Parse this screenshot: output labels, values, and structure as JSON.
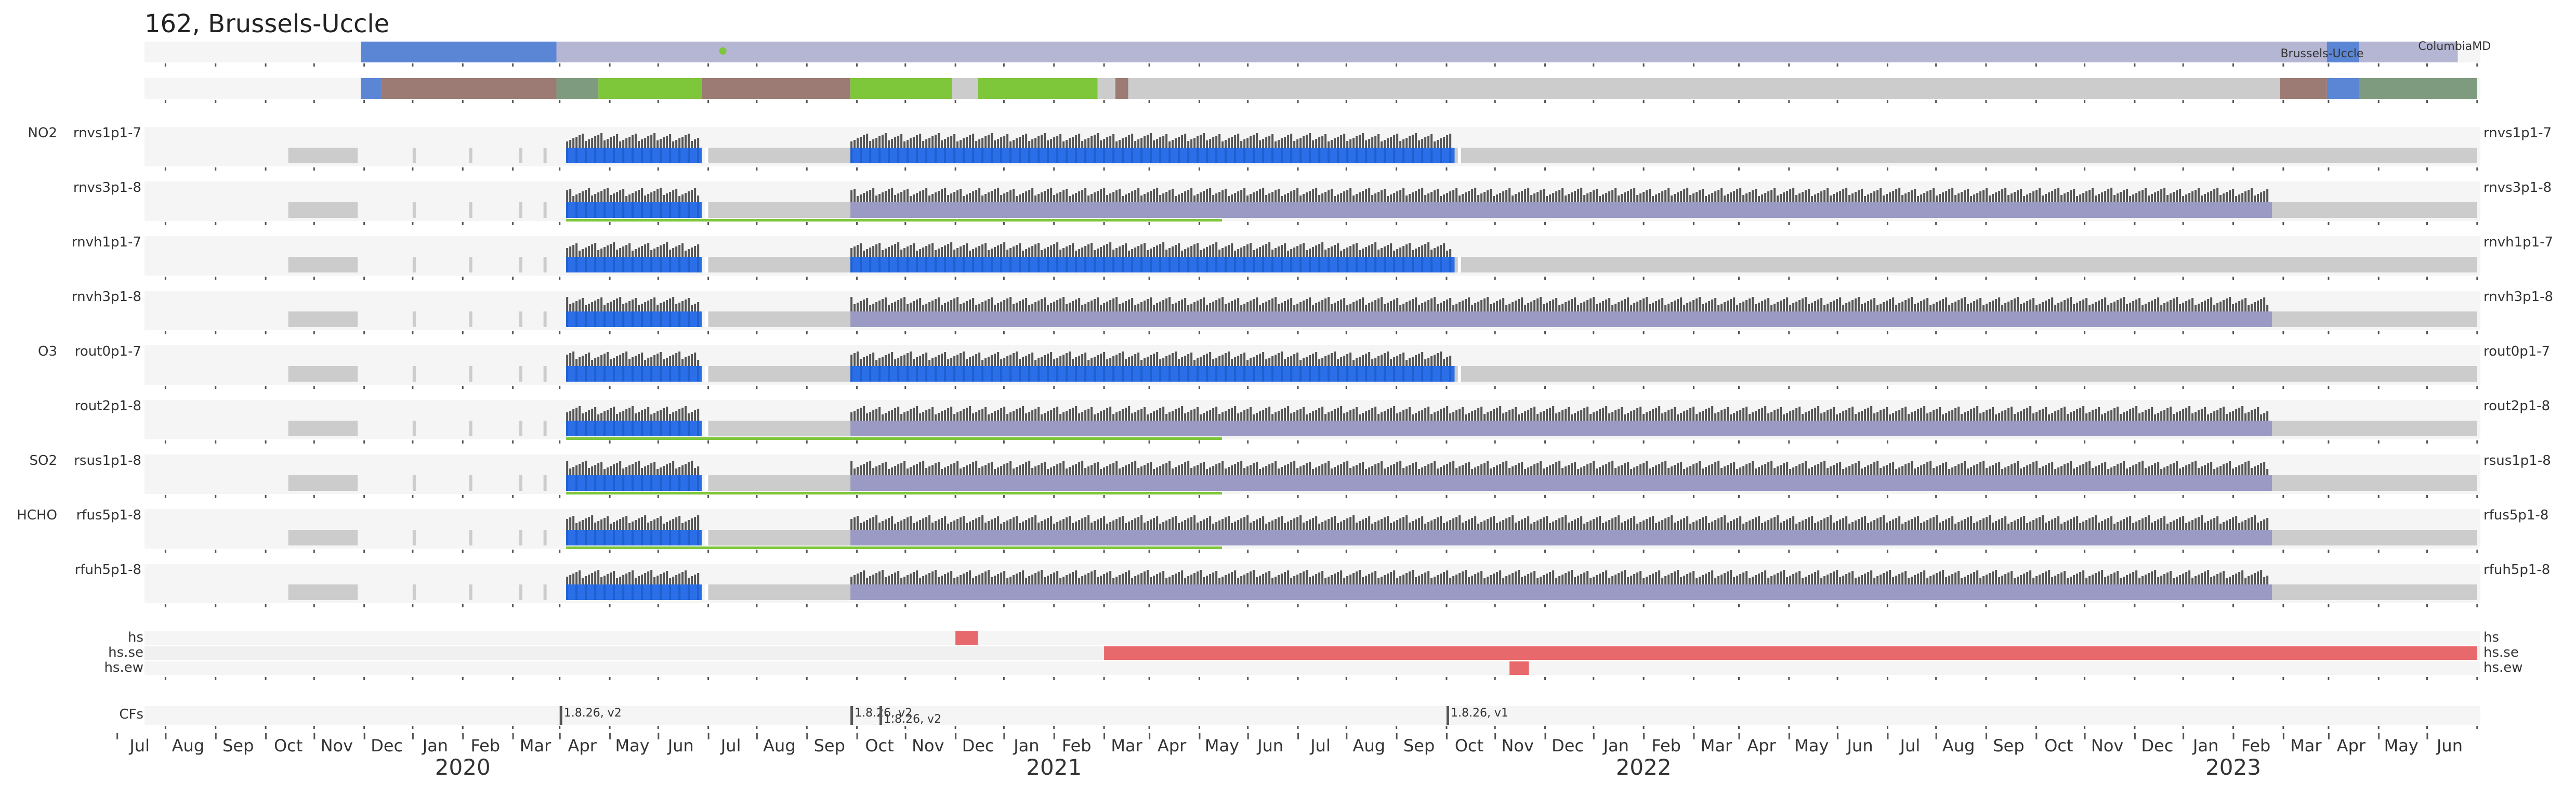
{
  "title": "162, Brussels-Uccle",
  "chart_data": {
    "type": "timeline",
    "timeline_range": [
      "2019-06-18",
      "2023-06-12"
    ],
    "location_bar": {
      "blue_segments": [
        [
          "2019-10-30",
          "2020-02-28"
        ],
        [
          "2023-02-28",
          "2023-03-20"
        ]
      ],
      "lavender_segments": [
        [
          "2020-02-28",
          "2023-02-28"
        ],
        [
          "2023-03-20",
          "2023-05-20"
        ]
      ],
      "green_dot": "2020-06-10",
      "labels": [
        {
          "text": "Brussels-Uccle",
          "date": "2023-02-25"
        },
        {
          "text": "ColumbiaMD",
          "date": "2023-05-18"
        }
      ]
    },
    "status_bar": {
      "segments": [
        {
          "start": "2019-10-30",
          "end": "2019-11-12",
          "color": "#5b86d6"
        },
        {
          "start": "2019-11-12",
          "end": "2020-02-28",
          "color": "#9b7b73"
        },
        {
          "start": "2020-02-28",
          "end": "2020-03-25",
          "color": "#7f9b7f"
        },
        {
          "start": "2020-03-25",
          "end": "2020-05-28",
          "color": "#7ec63a"
        },
        {
          "start": "2020-05-28",
          "end": "2020-08-28",
          "color": "#9b7b73"
        },
        {
          "start": "2020-08-28",
          "end": "2020-10-30",
          "color": "#7ec63a"
        },
        {
          "start": "2020-10-30",
          "end": "2020-11-15",
          "color": "#cccccc"
        },
        {
          "start": "2020-11-15",
          "end": "2021-01-28",
          "color": "#7ec63a"
        },
        {
          "start": "2021-01-28",
          "end": "2021-02-08",
          "color": "#cccccc"
        },
        {
          "start": "2021-02-08",
          "end": "2021-02-16",
          "color": "#9b7b73"
        },
        {
          "start": "2021-02-16",
          "end": "2023-01-30",
          "color": "#cccccc"
        },
        {
          "start": "2023-01-30",
          "end": "2023-02-28",
          "color": "#9b7b73"
        },
        {
          "start": "2023-02-28",
          "end": "2023-03-20",
          "color": "#5b86d6"
        },
        {
          "start": "2023-03-20",
          "end": "2023-06-01",
          "color": "#7f9b7f"
        }
      ]
    },
    "rows": [
      {
        "group": "NO2",
        "name": "rnvs1p1-7",
        "data_spans": [
          [
            "2020-03-05",
            "2020-05-28"
          ],
          [
            "2020-08-28",
            "2021-09-06"
          ]
        ],
        "green_line": null,
        "grey_until": "2023-06-01"
      },
      {
        "group": "",
        "name": "rnvs3p1-8",
        "data_spans": [
          [
            "2020-03-05",
            "2020-05-28"
          ],
          [
            "2020-08-28",
            "2023-01-25"
          ]
        ],
        "green_line": [
          "2020-03-05",
          "2021-04-15"
        ],
        "grey_until": "2023-06-01"
      },
      {
        "group": "",
        "name": "rnvh1p1-7",
        "data_spans": [
          [
            "2020-03-05",
            "2020-05-28"
          ],
          [
            "2020-08-28",
            "2021-09-06"
          ]
        ],
        "green_line": null,
        "grey_until": "2023-06-01"
      },
      {
        "group": "",
        "name": "rnvh3p1-8",
        "data_spans": [
          [
            "2020-03-05",
            "2020-05-28"
          ],
          [
            "2020-08-28",
            "2023-01-25"
          ]
        ],
        "green_line": null,
        "grey_until": "2023-06-01"
      },
      {
        "group": "O3",
        "name": "rout0p1-7",
        "data_spans": [
          [
            "2020-03-05",
            "2020-05-28"
          ],
          [
            "2020-08-28",
            "2021-09-06"
          ]
        ],
        "green_line": null,
        "grey_until": "2023-06-01"
      },
      {
        "group": "",
        "name": "rout2p1-8",
        "data_spans": [
          [
            "2020-03-05",
            "2020-05-28"
          ],
          [
            "2020-08-28",
            "2023-01-25"
          ]
        ],
        "green_line": [
          "2020-03-05",
          "2021-04-15"
        ],
        "grey_until": "2023-06-01"
      },
      {
        "group": "SO2",
        "name": "rsus1p1-8",
        "data_spans": [
          [
            "2020-03-05",
            "2020-05-28"
          ],
          [
            "2020-08-28",
            "2023-01-25"
          ]
        ],
        "green_line": [
          "2020-03-05",
          "2021-04-15"
        ],
        "grey_until": "2023-06-01"
      },
      {
        "group": "HCHO",
        "name": "rfus5p1-8",
        "data_spans": [
          [
            "2020-03-05",
            "2020-05-28"
          ],
          [
            "2020-08-28",
            "2023-01-25"
          ]
        ],
        "green_line": [
          "2020-03-05",
          "2021-04-15"
        ],
        "grey_until": "2023-06-01"
      },
      {
        "group": "",
        "name": "rfuh5p1-8",
        "data_spans": [
          [
            "2020-03-05",
            "2020-05-28"
          ],
          [
            "2020-08-28",
            "2023-01-25"
          ]
        ],
        "green_line": null,
        "grey_until": "2023-06-01"
      }
    ],
    "flags": [
      {
        "name": "hs",
        "segments": [
          [
            "2020-11-01",
            "2020-11-15"
          ]
        ]
      },
      {
        "name": "hs.se",
        "segments": [
          [
            "2021-02-01",
            "2023-06-01"
          ]
        ]
      },
      {
        "name": "hs.ew",
        "segments": [
          [
            "2021-10-10",
            "2021-10-22"
          ]
        ]
      }
    ],
    "cfs": {
      "label": "CFs",
      "items": [
        {
          "date": "2020-03-01",
          "text": "1.8.26, v2"
        },
        {
          "date": "2020-08-28",
          "text": "1.8.26, v2"
        },
        {
          "date": "2020-09-15",
          "text": "1.8.26, v2"
        },
        {
          "date": "2021-09-01",
          "text": "1.8.26, v1"
        }
      ]
    },
    "month_labels": [
      "Jul",
      "Aug",
      "Sep",
      "Oct",
      "Nov",
      "Dec",
      "Jan",
      "Feb",
      "Mar",
      "Apr",
      "May",
      "Jun",
      "Jul",
      "Aug",
      "Sep",
      "Oct",
      "Nov",
      "Dec",
      "Jan",
      "Feb",
      "Mar",
      "Apr",
      "May",
      "Jun",
      "Jul",
      "Aug",
      "Sep",
      "Oct",
      "Nov",
      "Dec",
      "Jan",
      "Feb",
      "Mar",
      "Apr",
      "May",
      "Jun",
      "Jul",
      "Aug",
      "Sep",
      "Oct",
      "Nov",
      "Dec",
      "Jan",
      "Feb",
      "Mar",
      "Apr",
      "May",
      "Jun"
    ],
    "year_labels": [
      "2020",
      "2021",
      "2022",
      "2023"
    ],
    "colors": {
      "panel_bg": "#f5f5f5",
      "grey_fill": "#cccccc",
      "bar_dark": "#555555",
      "bar_blue": "#2a6fe8",
      "lavender": "#9a9ac4",
      "loc_lavender": "#b5b5d4",
      "loc_blue": "#5b86d6",
      "green": "#7ec63a",
      "flag_red": "#e8696b"
    }
  }
}
